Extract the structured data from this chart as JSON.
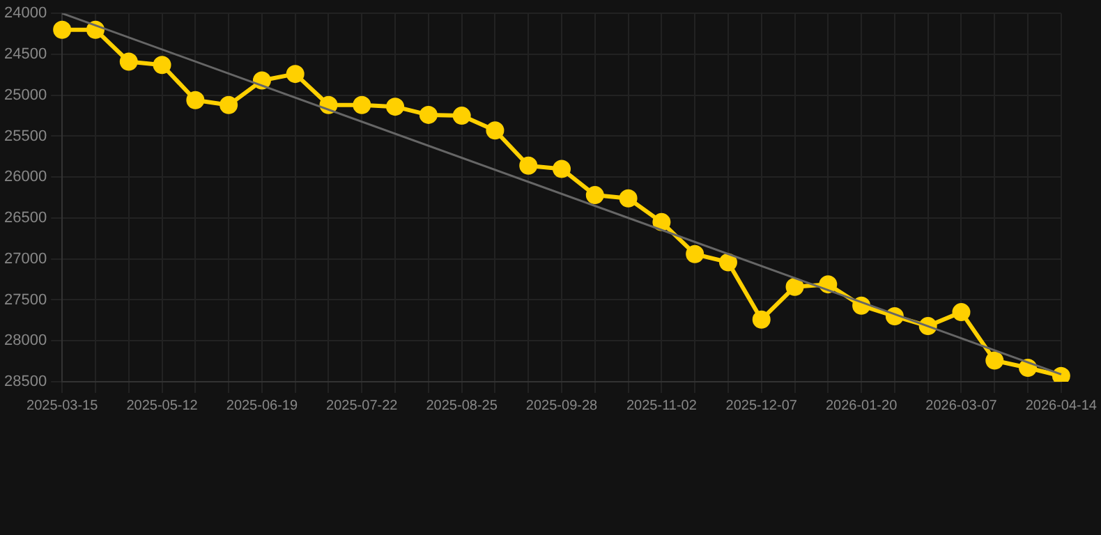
{
  "chart_data": {
    "type": "line",
    "categories": [
      "2025-03-15",
      null,
      null,
      "2025-05-12",
      null,
      null,
      "2025-06-19",
      null,
      null,
      "2025-07-22",
      null,
      null,
      "2025-08-25",
      null,
      null,
      "2025-09-28",
      null,
      null,
      "2025-11-02",
      null,
      null,
      "2025-12-07",
      null,
      null,
      "2026-01-20",
      null,
      null,
      "2026-03-07",
      null,
      null,
      "2026-04-14"
    ],
    "series": [
      {
        "color": "#ffd000",
        "marker": "circle",
        "values": [
          24200,
          24200,
          24590,
          24630,
          25060,
          25120,
          24820,
          24740,
          25120,
          25120,
          25140,
          25240,
          25250,
          25430,
          25860,
          25900,
          26220,
          26260,
          26550,
          26940,
          27040,
          27740,
          27340,
          27310,
          27570,
          27700,
          27820,
          27650,
          28240,
          28330,
          28430
        ]
      },
      {
        "color": "#666666",
        "marker": "none",
        "values": [
          24000,
          null,
          null,
          null,
          null,
          null,
          null,
          null,
          null,
          null,
          null,
          null,
          null,
          null,
          null,
          null,
          null,
          null,
          null,
          null,
          null,
          null,
          null,
          null,
          null,
          null,
          null,
          null,
          null,
          null,
          28410
        ]
      }
    ],
    "ylim": [
      28500,
      24000
    ],
    "yticks": [
      24000,
      24500,
      25000,
      25500,
      26000,
      26500,
      27000,
      27500,
      28000,
      28500
    ],
    "grid": true,
    "legend": false
  }
}
